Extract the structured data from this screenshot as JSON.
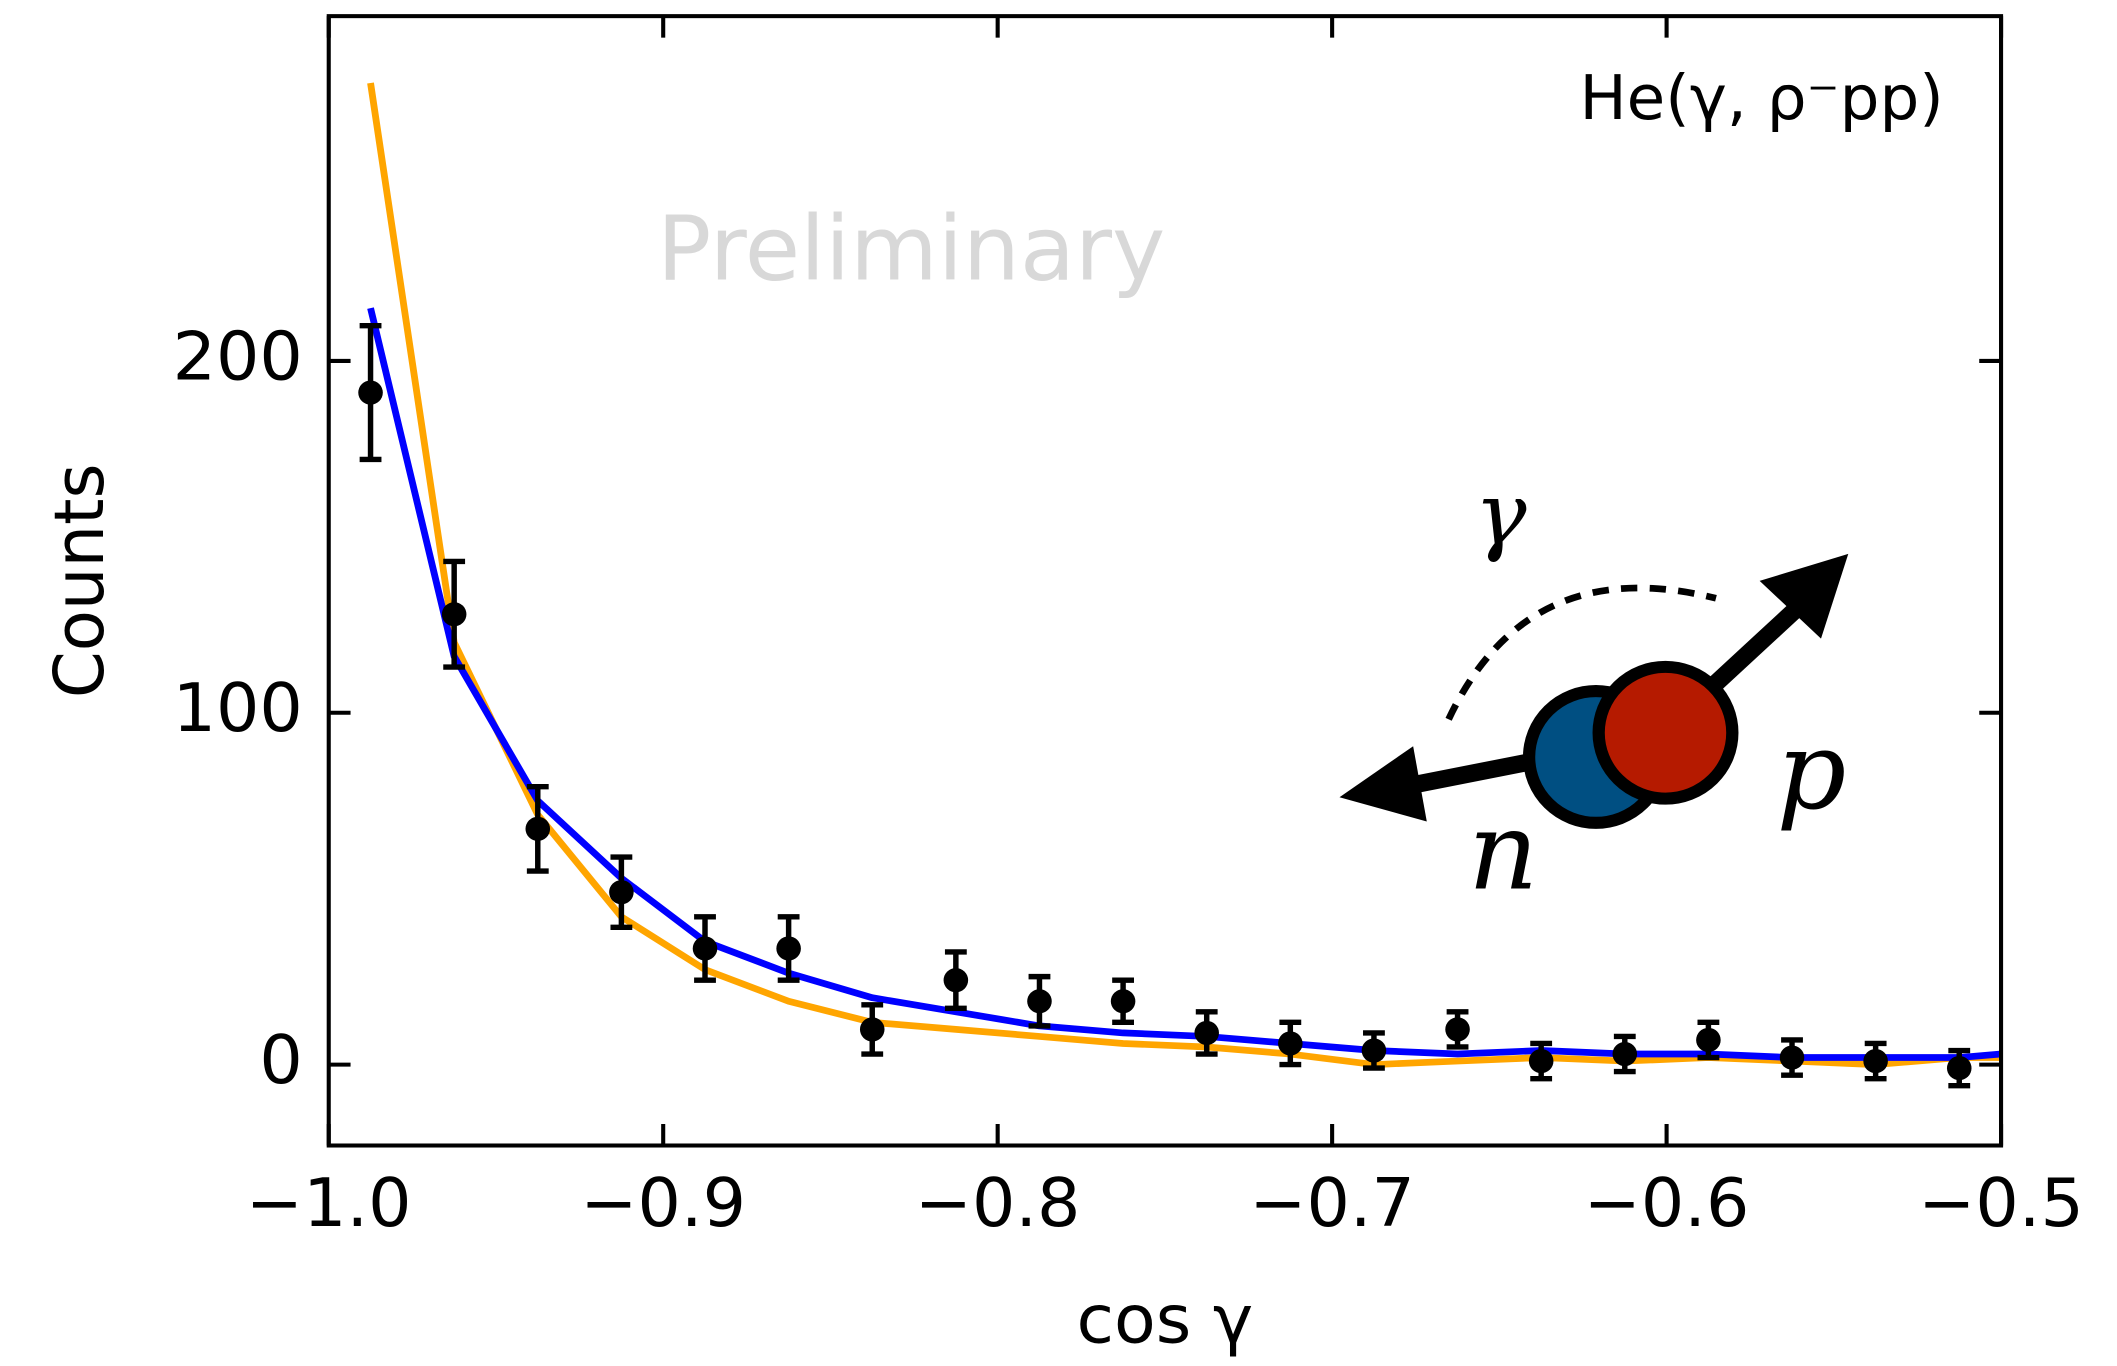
{
  "chart_data": {
    "type": "errorbar",
    "annotations": {
      "reaction": "He(γ, ρ⁻pp)",
      "watermark": "Preliminary",
      "inset_angle": "γ",
      "inset_proton": "p",
      "inset_neutron": "n"
    },
    "xlabel": "cos γ",
    "ylabel": "Counts",
    "xlim": [
      -1.0,
      -0.5
    ],
    "ylim": [
      -23,
      298
    ],
    "xticks": [
      {
        "value": -1.0,
        "label": "−1.0"
      },
      {
        "value": -0.9,
        "label": "−0.9"
      },
      {
        "value": -0.8,
        "label": "−0.8"
      },
      {
        "value": -0.7,
        "label": "−0.7"
      },
      {
        "value": -0.6,
        "label": "−0.6"
      },
      {
        "value": -0.5,
        "label": "−0.5"
      }
    ],
    "yticks": [
      0,
      100,
      200
    ],
    "points": {
      "color": "#000000",
      "x": [
        -0.9875,
        -0.9625,
        -0.9375,
        -0.9125,
        -0.8875,
        -0.8625,
        -0.8375,
        -0.8125,
        -0.7875,
        -0.7625,
        -0.7375,
        -0.7125,
        -0.6875,
        -0.6625,
        -0.6375,
        -0.6125,
        -0.5875,
        -0.5625,
        -0.5375,
        -0.5125
      ],
      "values": [
        191,
        128,
        67,
        49,
        33,
        33,
        10,
        24,
        18,
        18,
        9,
        6,
        4,
        10,
        1,
        3,
        7,
        2,
        1,
        -1
      ],
      "errors": [
        19,
        15,
        12,
        10,
        9,
        9,
        7,
        8,
        7,
        6,
        6,
        6,
        5,
        5,
        5,
        5,
        5,
        5,
        5,
        5
      ]
    },
    "lines": [
      {
        "color": "#ffa500",
        "x": [
          -0.9875,
          -0.9625,
          -0.9375,
          -0.9125,
          -0.8875,
          -0.8625,
          -0.8375,
          -0.8125,
          -0.7875,
          -0.7625,
          -0.7375,
          -0.7125,
          -0.6875,
          -0.6625,
          -0.6375,
          -0.6125,
          -0.5875,
          -0.5625,
          -0.5375,
          -0.5125,
          -0.5
        ],
        "values": [
          279,
          120,
          71,
          42,
          27,
          18,
          12,
          10,
          8,
          6,
          5,
          3,
          0,
          1,
          2,
          1,
          2,
          1,
          0,
          2,
          2
        ]
      },
      {
        "color": "#0000ff",
        "x": [
          -0.9875,
          -0.9625,
          -0.9375,
          -0.9125,
          -0.8875,
          -0.8625,
          -0.8375,
          -0.8125,
          -0.7875,
          -0.7625,
          -0.7375,
          -0.7125,
          -0.6875,
          -0.6625,
          -0.6375,
          -0.6125,
          -0.5875,
          -0.5625,
          -0.5375,
          -0.5125,
          -0.5
        ],
        "values": [
          215,
          116,
          75,
          53,
          35,
          26,
          19,
          15,
          11,
          9,
          8,
          6,
          4,
          3,
          4,
          3,
          3,
          2,
          2,
          2,
          3
        ]
      }
    ]
  }
}
